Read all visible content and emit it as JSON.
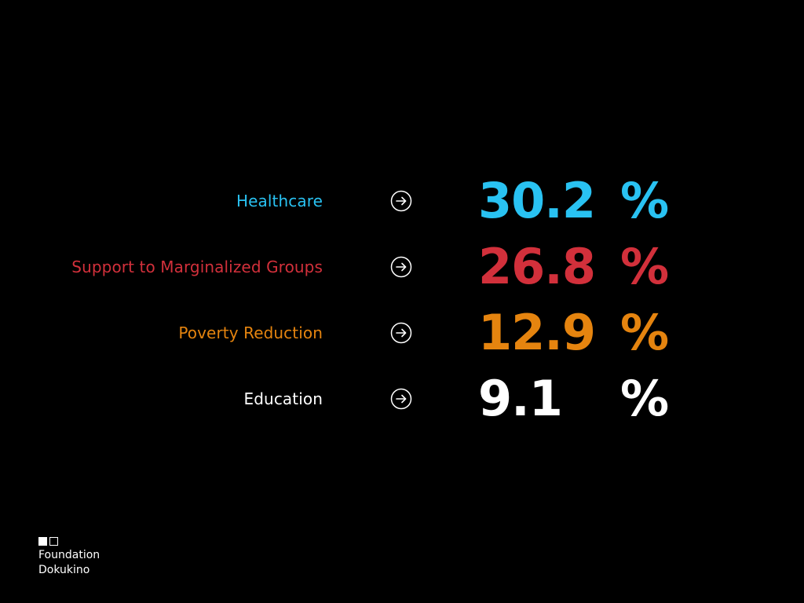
{
  "rows": [
    {
      "label": "Healthcare",
      "value": "30.2",
      "unit": "%",
      "color": "#29c2f2",
      "icon": "arrow-right-circle-icon"
    },
    {
      "label": "Support to Marginalized Groups",
      "value": "26.8",
      "unit": "%",
      "color": "#d2303b",
      "icon": "arrow-right-circle-icon"
    },
    {
      "label": "Poverty Reduction",
      "value": "12.9",
      "unit": "%",
      "color": "#e5840f",
      "icon": "arrow-right-circle-icon"
    },
    {
      "label": "Education",
      "value": "9.1",
      "unit": "%",
      "color": "#ffffff",
      "icon": "arrow-right-circle-icon"
    }
  ],
  "brand": {
    "line1": "Foundation",
    "line2": "Dokukino"
  }
}
